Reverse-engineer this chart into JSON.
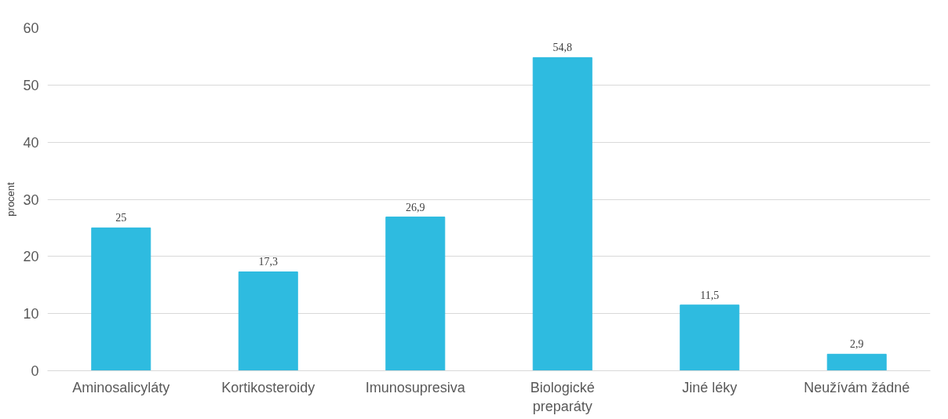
{
  "chart_data": {
    "type": "bar",
    "ylabel": "procent",
    "categories": [
      "Aminosalicyláty",
      "Kortikosteroidy",
      "Imunosupresiva",
      "Biologické preparáty",
      "Jiné léky",
      "Neužívám žádné"
    ],
    "values": [
      25,
      17.3,
      26.9,
      54.8,
      11.5,
      2.9
    ],
    "value_labels": [
      "25",
      "17,3",
      "26,9",
      "54,8",
      "11,5",
      "2,9"
    ],
    "color": "#2ebbe0",
    "ylim": [
      0,
      60
    ],
    "yticks": [
      0,
      10,
      20,
      30,
      40,
      50,
      60
    ],
    "grid": "y"
  }
}
